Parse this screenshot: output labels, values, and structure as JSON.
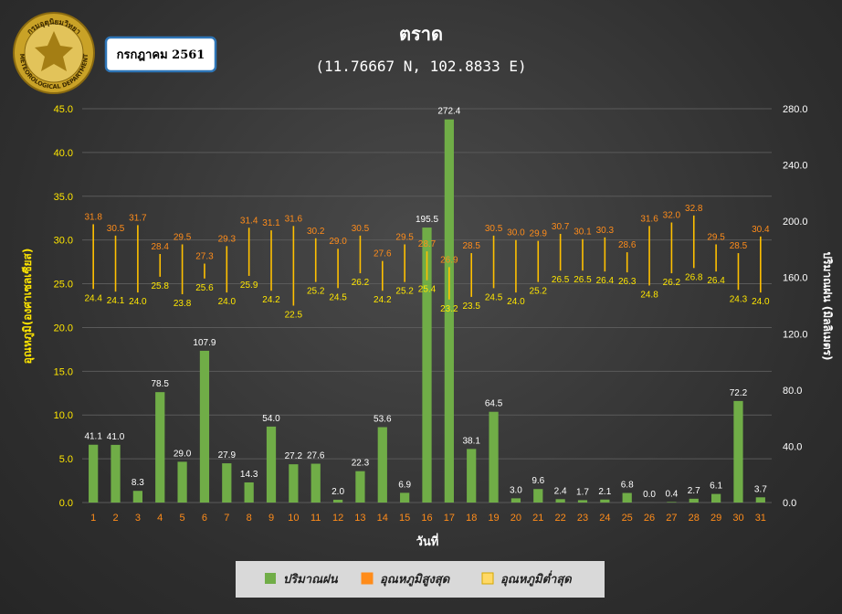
{
  "header": {
    "logo_text": "METEOROLOGICAL DEPARTMENT",
    "logo_text_thai": "กรมอุตุนิยมวิทยา",
    "date_label": "กรกฎาคม 2561"
  },
  "colors": {
    "rain": "#70ad47",
    "max_temp": "#ff8c1a",
    "min_temp": "#ffd966",
    "range_line": "#ffc000",
    "left_axis": "#ffe600"
  },
  "chart_data": {
    "type": "bar",
    "title": "ตราด",
    "subtitle": "(11.76667 N, 102.8833 E)",
    "xlabel": "วันที่",
    "ylabel_left": "อุณหภูมิ(องศาเซลเซียส)",
    "ylabel_right": "ปริมาณฝน (มิลลิเมตร)",
    "ylim_left": [
      0,
      45
    ],
    "ylim_right": [
      0,
      280
    ],
    "yticks_left": [
      "0.0",
      "5.0",
      "10.0",
      "15.0",
      "20.0",
      "25.0",
      "30.0",
      "35.0",
      "40.0",
      "45.0"
    ],
    "yticks_right": [
      "0.0",
      "40.0",
      "80.0",
      "120.0",
      "160.0",
      "200.0",
      "240.0",
      "280.0"
    ],
    "grid": true,
    "legend_position": "bottom",
    "categories": [
      "1",
      "2",
      "3",
      "4",
      "5",
      "6",
      "7",
      "8",
      "9",
      "10",
      "11",
      "12",
      "13",
      "14",
      "15",
      "16",
      "17",
      "18",
      "19",
      "20",
      "21",
      "22",
      "23",
      "24",
      "25",
      "26",
      "27",
      "28",
      "29",
      "30",
      "31"
    ],
    "series": [
      {
        "name": "ปริมาณฝน",
        "axis": "right",
        "kind": "bar",
        "values": [
          41.1,
          41.0,
          8.3,
          78.5,
          29.0,
          107.9,
          27.9,
          14.3,
          54.0,
          27.2,
          27.6,
          2.0,
          22.3,
          53.6,
          6.9,
          195.5,
          272.4,
          38.1,
          64.5,
          3.0,
          9.6,
          2.4,
          1.7,
          2.1,
          6.8,
          0.0,
          0.4,
          2.7,
          6.1,
          72.2,
          3.7
        ]
      },
      {
        "name": "อุณหภูมิสูงสุด",
        "axis": "left",
        "kind": "range-high",
        "values": [
          31.8,
          30.5,
          31.7,
          28.4,
          29.5,
          27.3,
          29.3,
          31.4,
          31.1,
          31.6,
          30.2,
          29.0,
          30.5,
          27.6,
          29.5,
          28.7,
          26.9,
          28.5,
          30.5,
          30.0,
          29.9,
          30.7,
          30.1,
          30.3,
          28.6,
          31.6,
          32.0,
          32.8,
          29.5,
          28.5,
          30.4
        ]
      },
      {
        "name": "อุณหภูมิต่ำสุด",
        "axis": "left",
        "kind": "range-low",
        "values": [
          24.4,
          24.1,
          24.0,
          25.8,
          23.8,
          25.6,
          24.0,
          25.9,
          24.2,
          22.5,
          25.2,
          24.5,
          26.2,
          24.2,
          25.2,
          25.4,
          23.2,
          23.5,
          24.5,
          24.0,
          25.2,
          26.5,
          26.5,
          26.4,
          26.3,
          24.8,
          26.2,
          26.8,
          26.4,
          24.3,
          24.0
        ]
      }
    ]
  }
}
